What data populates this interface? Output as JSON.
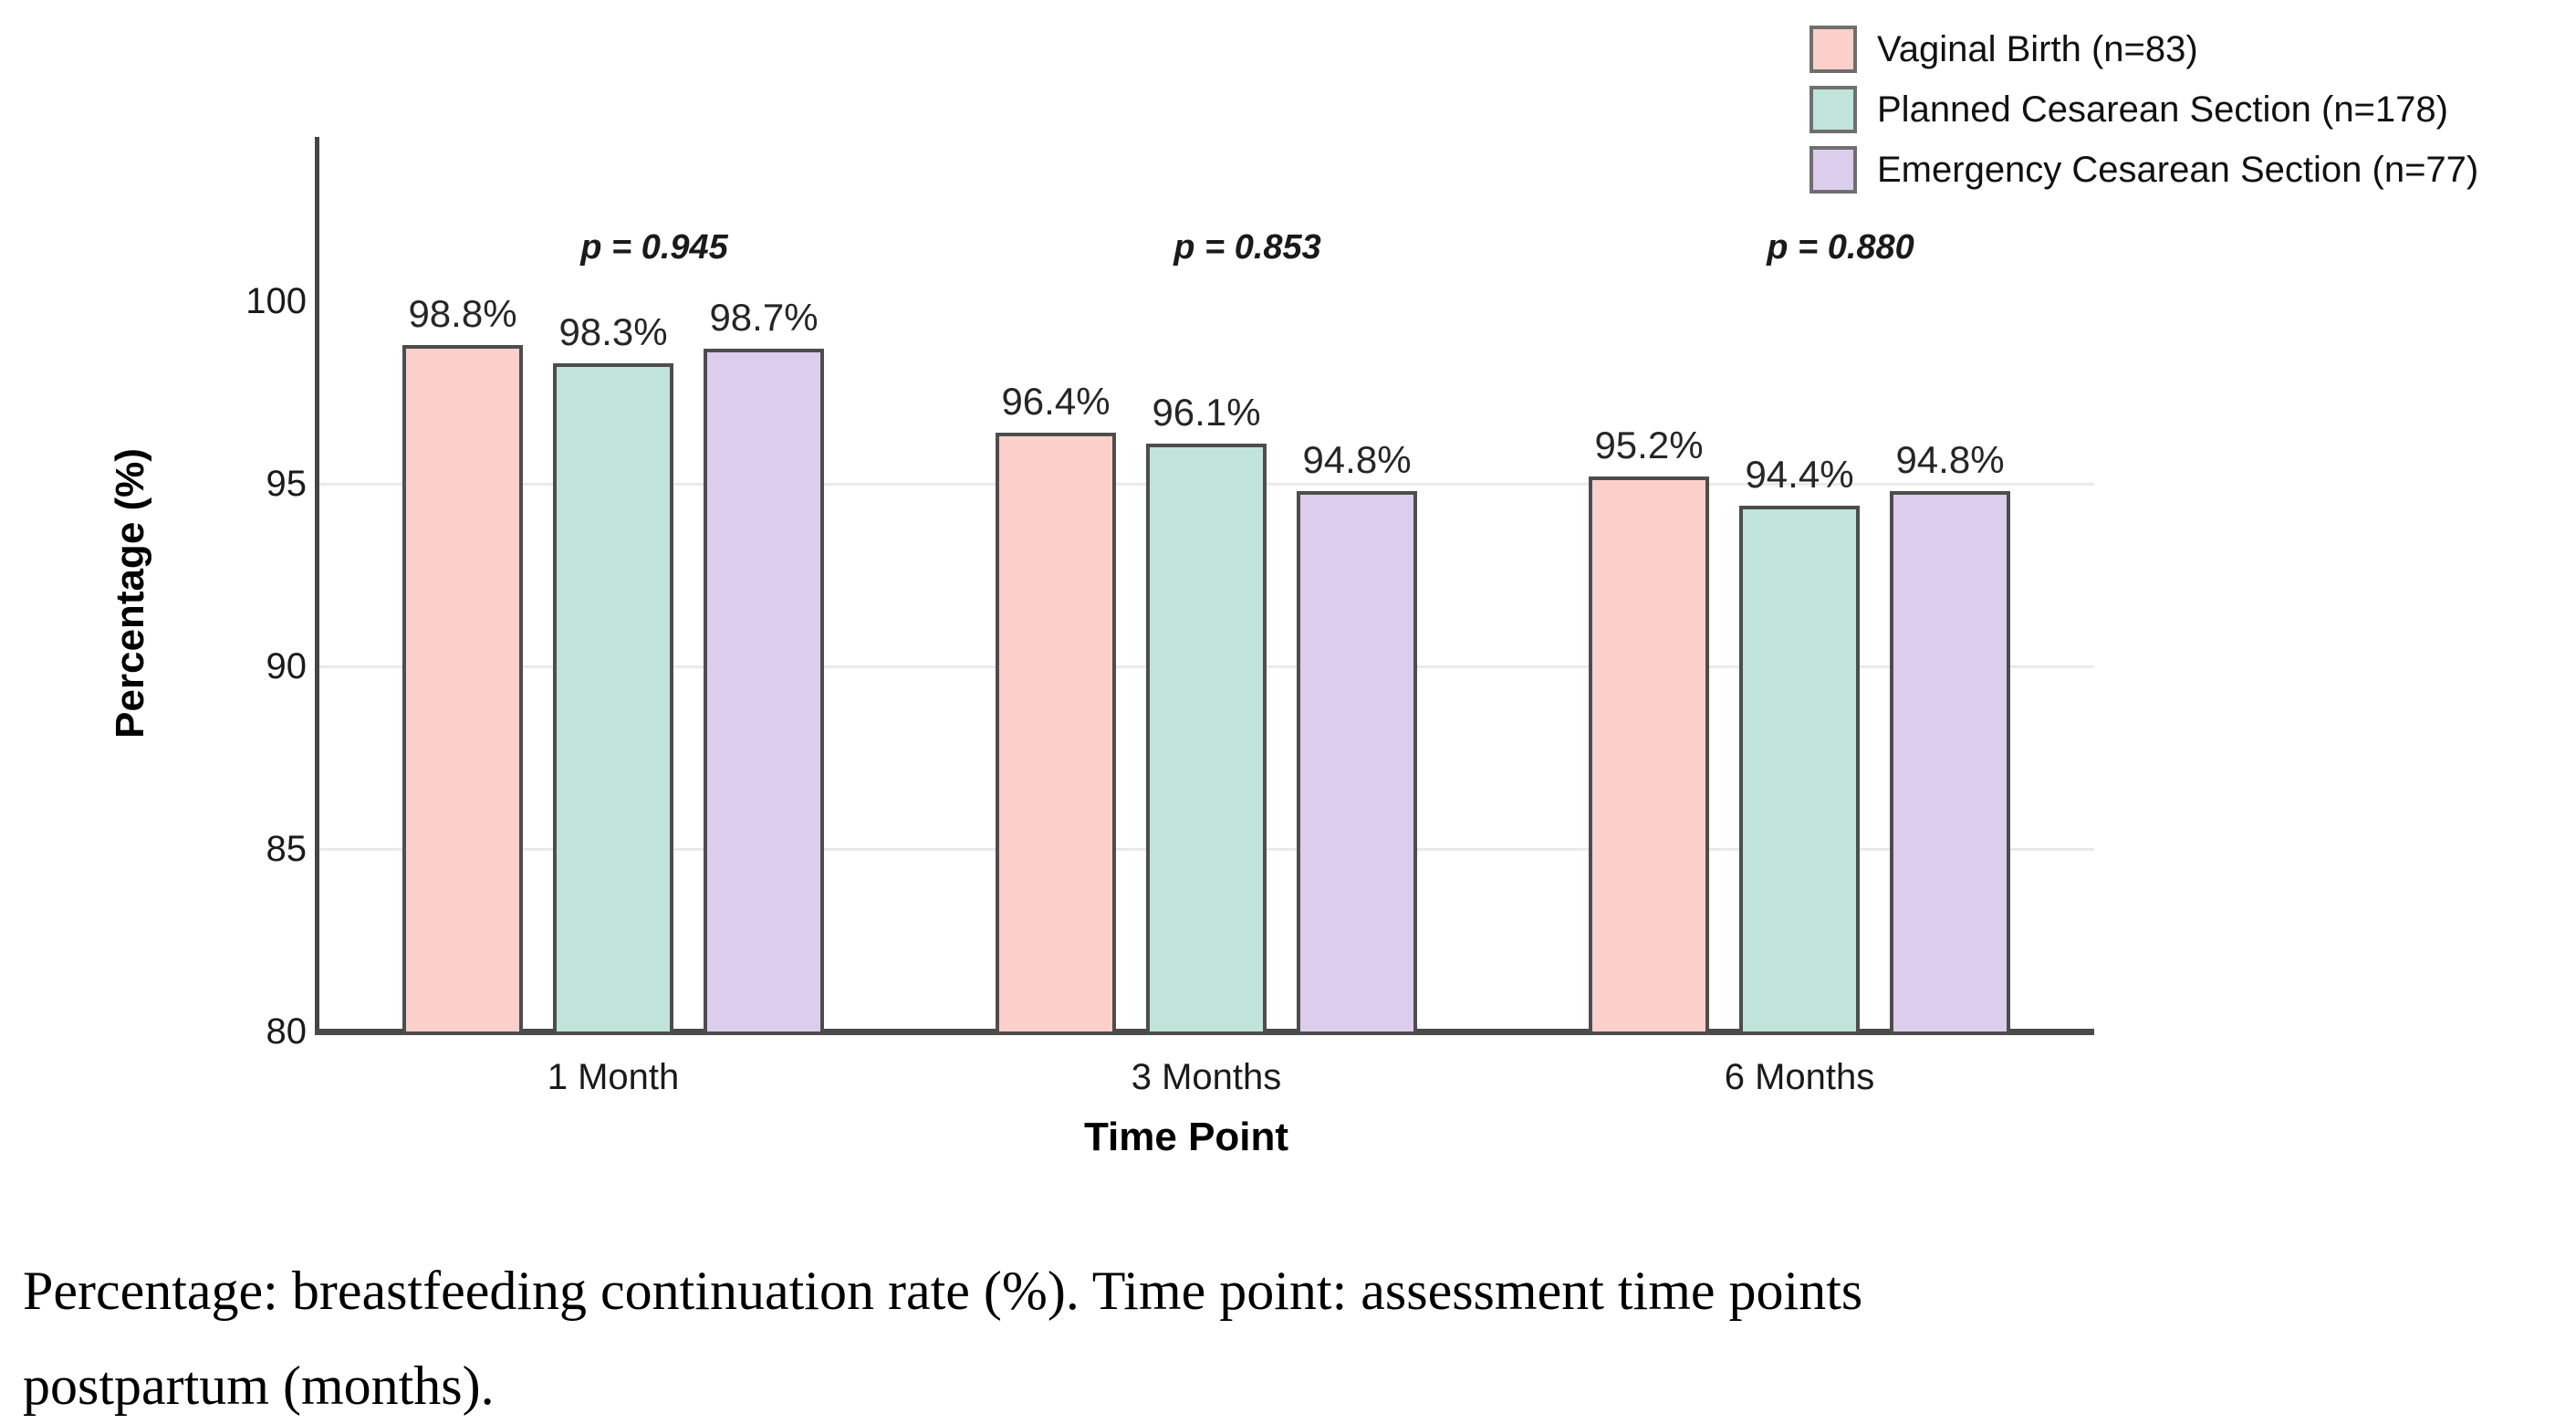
{
  "chart_data": {
    "type": "bar",
    "title": "",
    "categories": [
      "1 Month",
      "3 Months",
      "6 Months"
    ],
    "series": [
      {
        "name": "Vaginal Birth (n=83)",
        "color": "#FBD0CA",
        "values": [
          98.8,
          96.4,
          95.2
        ]
      },
      {
        "name": "Planned Cesarean Section (n=178)",
        "color": "#C0E3DA",
        "values": [
          98.3,
          96.1,
          94.4
        ]
      },
      {
        "name": "Emergency Cesarean Section (n=77)",
        "color": "#DCCDED",
        "values": [
          98.7,
          94.8,
          94.8
        ]
      }
    ],
    "bar_label_format": "percent_one_decimal",
    "p_values": [
      "p = 0.945",
      "p = 0.853",
      "p = 0.880"
    ],
    "xlabel": "Time Point",
    "ylabel": "Percentage (%)",
    "ylim": [
      80,
      104.5
    ],
    "yticks": [
      100,
      95,
      90,
      85,
      80
    ],
    "gridline_ticks": [
      95,
      90,
      85
    ],
    "grid": "horizontal",
    "legend_position": "top-right",
    "bar_border_color": "#4d4d4d",
    "axis_color": "#454545",
    "gridline_color": "#eaeaea"
  },
  "caption": {
    "line1": "Percentage: breastfeeding continuation rate (%). Time point: assessment time points",
    "line2": "postpartum (months)."
  }
}
